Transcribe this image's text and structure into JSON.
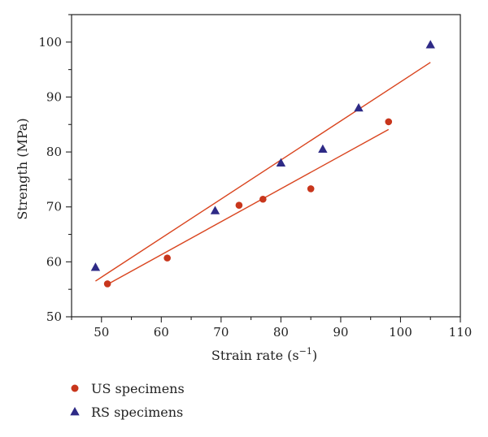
{
  "chart_data": {
    "type": "scatter",
    "xlabel": "Strain rate (s",
    "xlabel_sup": "−1",
    "xlabel_close": ")",
    "ylabel": "Strength (MPa)",
    "xlim": [
      45,
      110
    ],
    "ylim": [
      50,
      105
    ],
    "xticks": [
      50,
      60,
      70,
      80,
      90,
      100,
      110
    ],
    "yticks": [
      50,
      60,
      70,
      80,
      90,
      100
    ],
    "grid": false,
    "legend_position": "bottom-left, below axes",
    "series": [
      {
        "name": "US specimens",
        "marker": "circle",
        "color": "#c8361c",
        "points": [
          [
            51,
            56
          ],
          [
            61,
            60.7
          ],
          [
            73,
            70.3
          ],
          [
            77,
            71.4
          ],
          [
            85,
            73.3
          ],
          [
            98,
            85.5
          ]
        ],
        "fit": [
          [
            51,
            55.9
          ],
          [
            98,
            84.1
          ]
        ]
      },
      {
        "name": "RS specimens",
        "marker": "triangle",
        "color": "#2e2a86",
        "points": [
          [
            49,
            59
          ],
          [
            69,
            69.3
          ],
          [
            80,
            78
          ],
          [
            87,
            80.5
          ],
          [
            93,
            88
          ],
          [
            105,
            99.5
          ]
        ],
        "fit": [
          [
            49,
            56.5
          ],
          [
            105,
            96.3
          ]
        ]
      }
    ],
    "fit_line_color": "#d9441e"
  }
}
